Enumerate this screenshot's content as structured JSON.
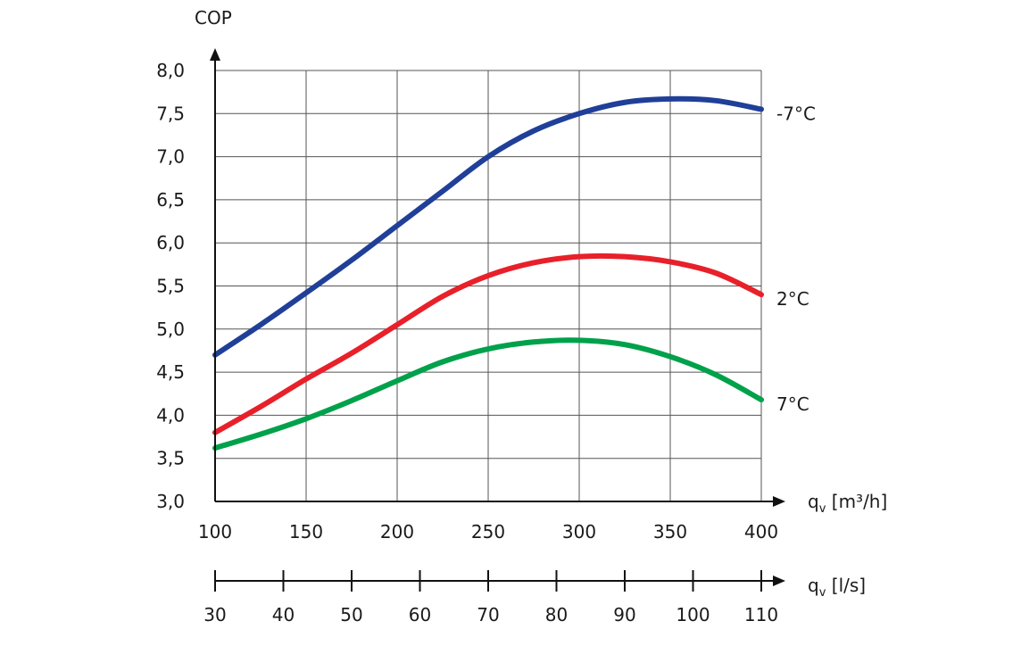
{
  "chart_data": {
    "type": "line",
    "ylabel": "COP",
    "ylim": [
      3.0,
      8.0
    ],
    "yticks": [
      "3,0",
      "3,5",
      "4,0",
      "4,5",
      "5,0",
      "5,5",
      "6,0",
      "6,5",
      "7,0",
      "7,5",
      "8,0"
    ],
    "yticks_values": [
      3.0,
      3.5,
      4.0,
      4.5,
      5.0,
      5.5,
      6.0,
      6.5,
      7.0,
      7.5,
      8.0
    ],
    "xlabel": {
      "main": "q",
      "sub": "v",
      "unit": " [m³/h]"
    },
    "xlim": [
      100,
      400
    ],
    "xticks": [
      "100",
      "150",
      "200",
      "250",
      "300",
      "350",
      "400"
    ],
    "xticks_values": [
      100,
      150,
      200,
      250,
      300,
      350,
      400
    ],
    "x2label": {
      "main": "q",
      "sub": "v",
      "unit": " [l/s]"
    },
    "x2lim": [
      30,
      110
    ],
    "x2ticks": [
      "30",
      "40",
      "50",
      "60",
      "70",
      "80",
      "90",
      "100",
      "110"
    ],
    "x2ticks_values": [
      30,
      40,
      50,
      60,
      70,
      80,
      90,
      100,
      110
    ],
    "grid": true,
    "series": [
      {
        "name": "-7°C",
        "color": "#1f3f98",
        "x": [
          100,
          125,
          150,
          175,
          200,
          225,
          250,
          275,
          300,
          325,
          350,
          375,
          400
        ],
        "y": [
          4.7,
          5.05,
          5.42,
          5.8,
          6.2,
          6.6,
          7.0,
          7.3,
          7.5,
          7.63,
          7.67,
          7.65,
          7.55
        ]
      },
      {
        "name": "2°C",
        "color": "#e8202a",
        "x": [
          100,
          125,
          150,
          175,
          200,
          225,
          250,
          275,
          300,
          325,
          350,
          375,
          400
        ],
        "y": [
          3.8,
          4.1,
          4.42,
          4.72,
          5.05,
          5.38,
          5.62,
          5.77,
          5.84,
          5.84,
          5.78,
          5.65,
          5.4
        ]
      },
      {
        "name": "7°C",
        "color": "#00a14b",
        "x": [
          100,
          125,
          150,
          175,
          200,
          225,
          250,
          275,
          300,
          325,
          350,
          375,
          400
        ],
        "y": [
          3.62,
          3.78,
          3.96,
          4.17,
          4.4,
          4.62,
          4.77,
          4.85,
          4.87,
          4.82,
          4.68,
          4.47,
          4.18
        ]
      }
    ]
  }
}
